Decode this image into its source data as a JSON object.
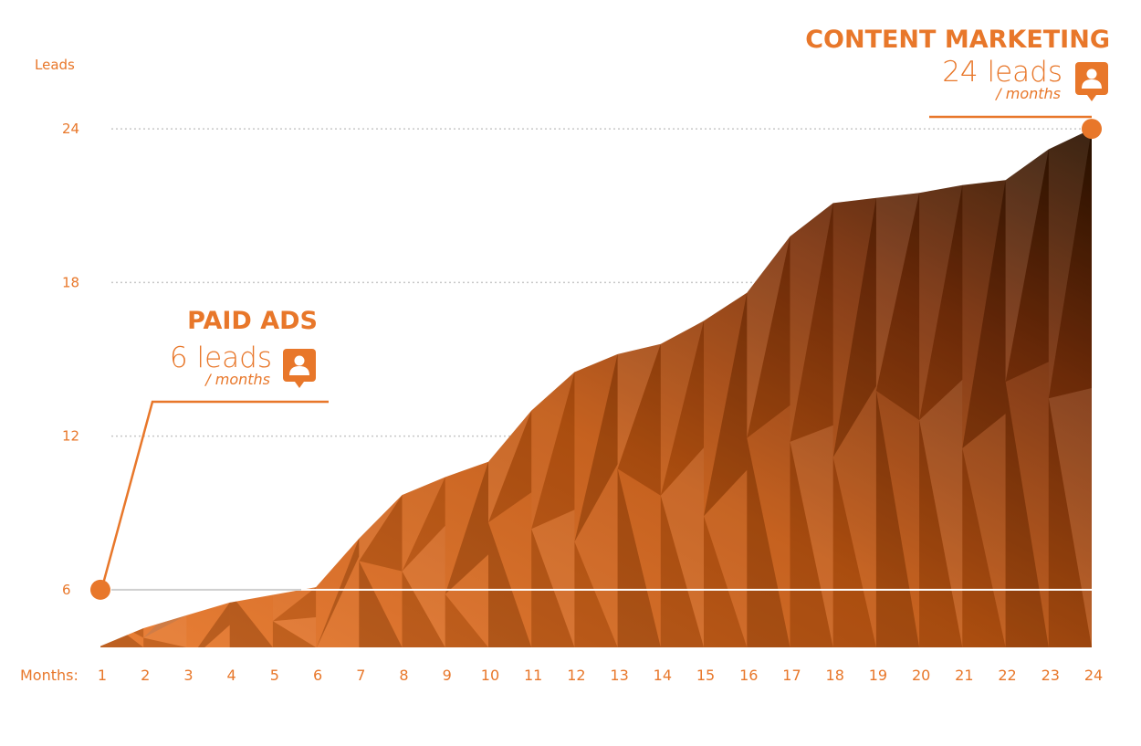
{
  "chart_data": {
    "type": "area",
    "ylabel": "Leads",
    "xlabel": "Months:",
    "x": [
      1,
      2,
      3,
      4,
      5,
      6,
      7,
      8,
      9,
      10,
      11,
      12,
      13,
      14,
      15,
      16,
      17,
      18,
      19,
      20,
      21,
      22,
      23,
      24
    ],
    "x_tick_labels": [
      "1",
      "2",
      "3",
      "4",
      "5",
      "6",
      "7",
      "8",
      "9",
      "10",
      "11",
      "12",
      "13",
      "14",
      "15",
      "16",
      "17",
      "18",
      "19",
      "20",
      "21",
      "22",
      "23",
      "24"
    ],
    "ylim": [
      3.75,
      26
    ],
    "y_ticks": [
      6,
      12,
      18,
      24
    ],
    "y_tick_labels": [
      "6",
      "12",
      "18",
      "24"
    ],
    "series": [
      {
        "values": [
          3.8,
          4.5,
          5.0,
          5.5,
          5.8,
          6.1,
          8.0,
          9.7,
          10.4,
          11.0,
          13.0,
          14.5,
          15.2,
          15.6,
          16.5,
          17.6,
          19.8,
          21.1,
          21.3,
          21.5,
          21.8,
          22.0,
          23.2,
          24.0
        ]
      }
    ],
    "reference_line": 6,
    "grid": "dotted horizontal at y ticks",
    "annotations": [
      {
        "title": "PAID ADS",
        "value_text": "6 leads",
        "unit_text": "/ months",
        "icon": "user-icon",
        "point": {
          "x": 1,
          "y": 6
        }
      },
      {
        "title": "CONTENT MARKETING",
        "value_text": "24 leads",
        "unit_text": "/ months",
        "icon": "user-icon",
        "point": {
          "x": 24,
          "y": 24
        }
      }
    ],
    "colors": {
      "accent": "#e8772a",
      "area_top": "#2b1200",
      "area_mid": "#a9440d",
      "area_light": "#e8772a",
      "grid": "#c8c8c8",
      "reference": "#ffffff"
    }
  }
}
